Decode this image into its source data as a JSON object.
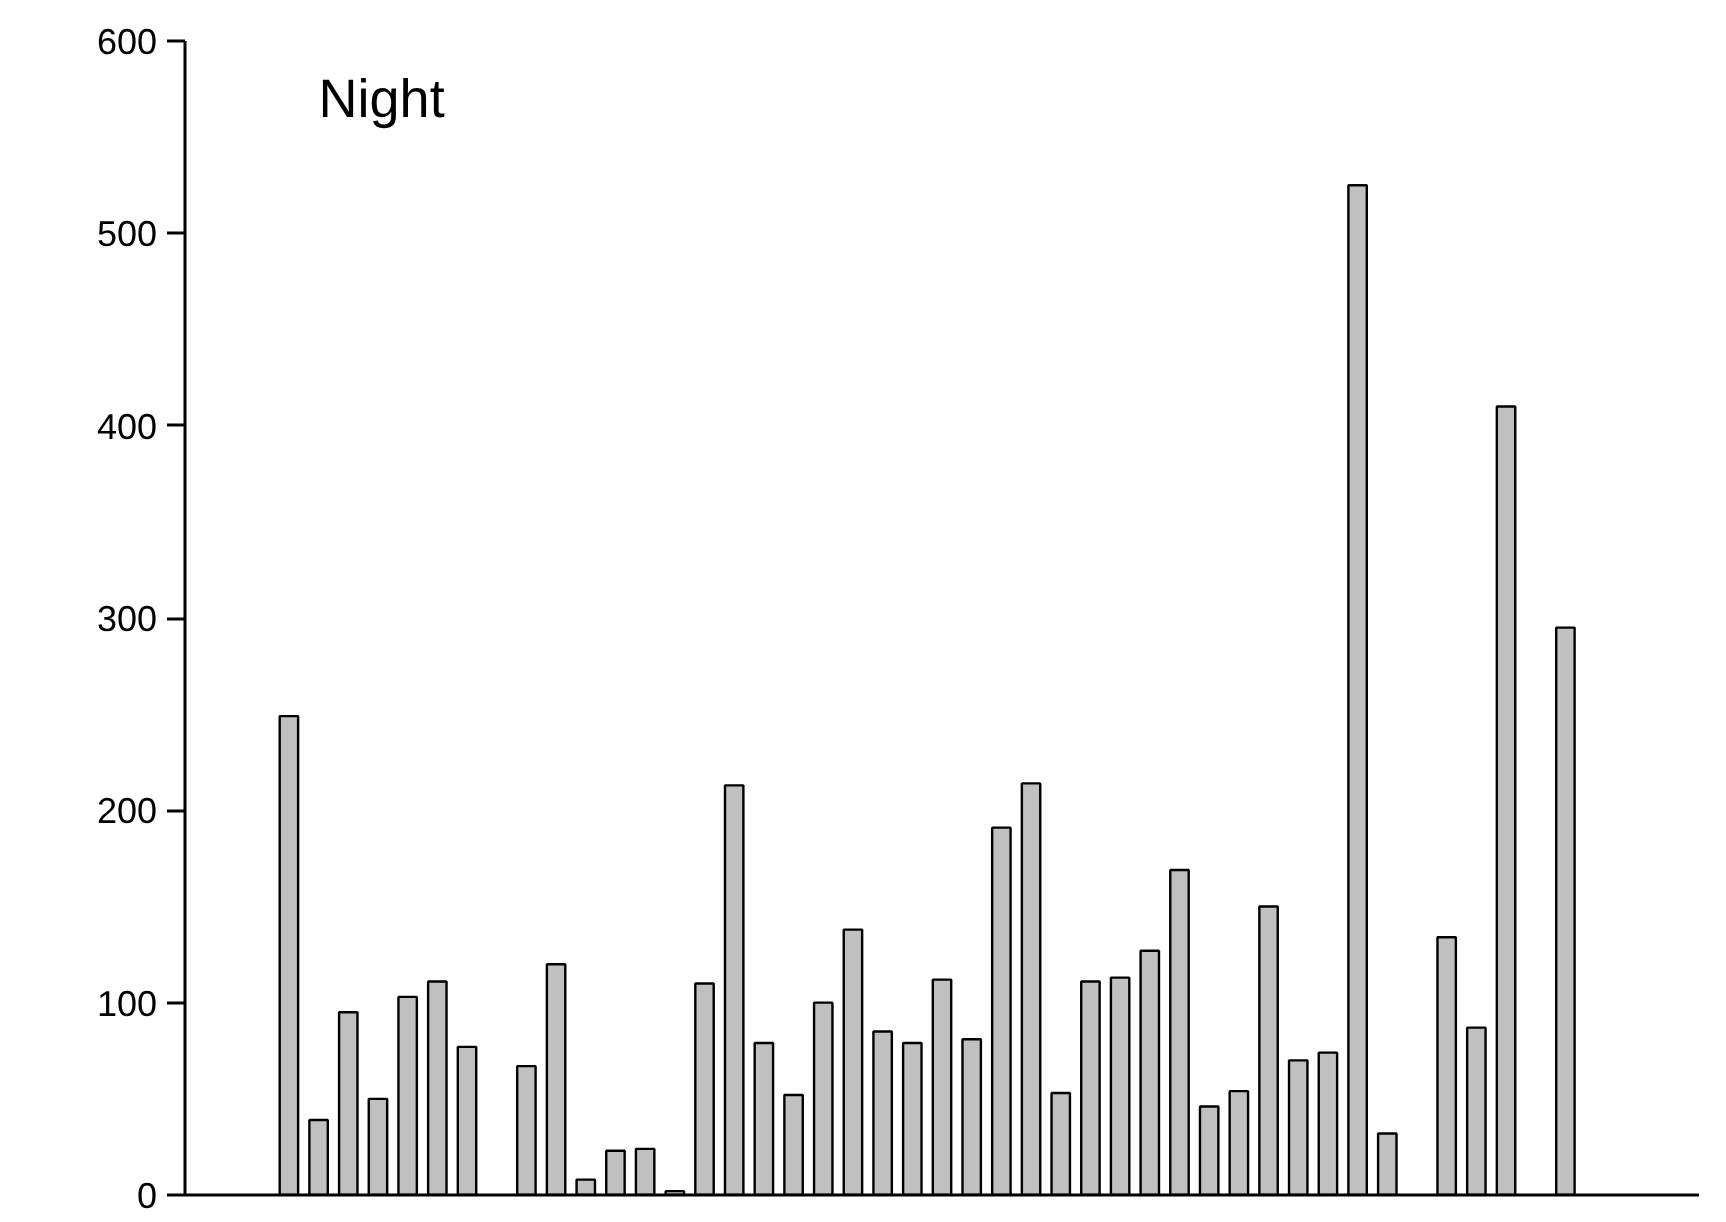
{
  "chart_data": {
    "type": "bar",
    "title": "Night",
    "categories": [
      null,
      null,
      null,
      null,
      null,
      null,
      null,
      null,
      null,
      null,
      null,
      null,
      null,
      null,
      null,
      null,
      null,
      null,
      null,
      null,
      null,
      null,
      null,
      null,
      null,
      null,
      null,
      null,
      null,
      null,
      null,
      null,
      null,
      null,
      null,
      null,
      null,
      null,
      null,
      null,
      null,
      null,
      null,
      null,
      null,
      null,
      null,
      null,
      null,
      null,
      null
    ],
    "values": [
      null,
      null,
      null,
      249,
      39,
      95,
      50,
      103,
      111,
      77,
      null,
      67,
      120,
      8,
      23,
      24,
      2,
      110,
      213,
      79,
      52,
      100,
      138,
      85,
      79,
      112,
      81,
      191,
      214,
      53,
      111,
      113,
      127,
      169,
      46,
      54,
      150,
      70,
      74,
      525,
      32,
      null,
      134,
      87,
      410,
      null,
      295,
      null,
      null,
      null,
      null
    ],
    "color": "#c0c0c0",
    "ylim": [
      0,
      600
    ],
    "yticks": [
      0,
      100,
      200,
      300,
      400,
      500,
      600
    ],
    "tick_labels": "y"
  }
}
